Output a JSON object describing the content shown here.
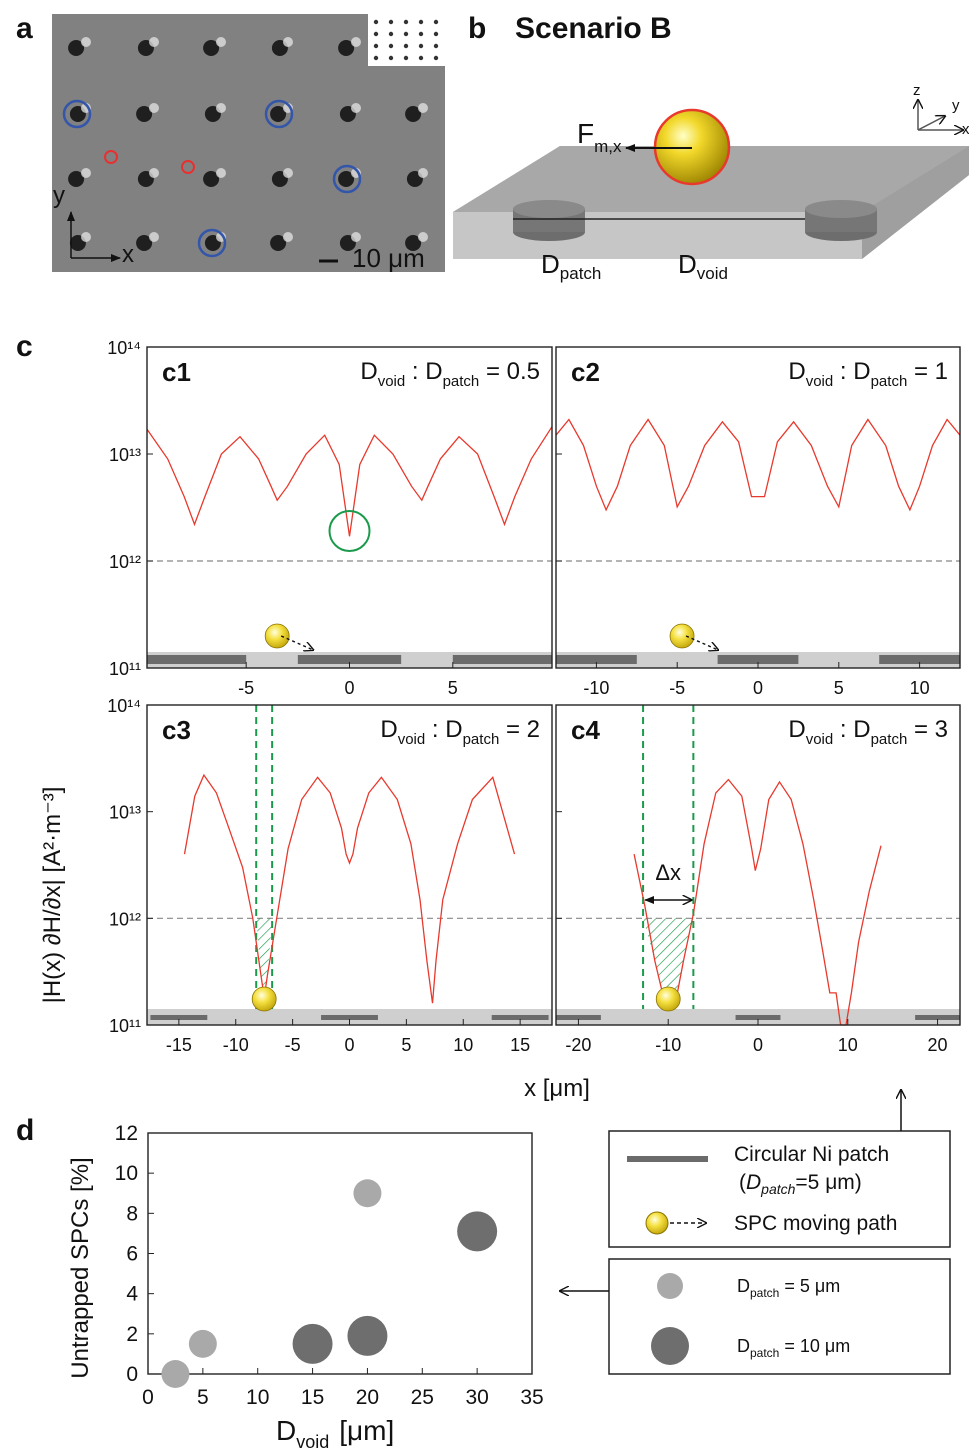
{
  "panel_labels": {
    "a": "a",
    "b": "b",
    "c": "c",
    "d": "d"
  },
  "panel_a": {
    "scale_bar": "10 μm",
    "axis_x": "x",
    "axis_y": "y"
  },
  "panel_b": {
    "title": "Scenario B",
    "force_main": "F",
    "force_sub": "m,x",
    "patch_main": "D",
    "patch_sub": "patch",
    "void_main": "D",
    "void_sub": "void",
    "coord_z": "z",
    "coord_y": "y",
    "coord_x": "x"
  },
  "panel_c": {
    "ylabel": "|H(x) ∂H/∂x| [A²·m⁻³]",
    "xlabel": "x [μm]",
    "y_ticks": [
      "10¹⁴",
      "10¹³",
      "10¹²",
      "10¹¹"
    ],
    "delta_x": "Δx",
    "ratio_main_void": "D",
    "ratio_sub_void": "void",
    "ratio_colon": ":",
    "ratio_main_patch": "D",
    "ratio_sub_patch": "patch"
  },
  "chart_data": [
    {
      "type": "line",
      "panel": "c1",
      "ratio_value": "= 0.5",
      "ylog": true,
      "ylim": [
        100000000000.0,
        100000000000000.0
      ],
      "xlim": [
        -9.8,
        9.8
      ],
      "xticks": [
        -5,
        0,
        5
      ],
      "threshold": 1000000000000.0,
      "series": [
        {
          "x": [
            -9.8,
            -8.8,
            -8.0,
            -7.5,
            -7.0,
            -6.2,
            -5.3,
            -4.4,
            -3.8,
            -3.5,
            -3.0,
            -2.1,
            -1.2,
            -0.5,
            0,
            0.5,
            1.2,
            2.1,
            3.0,
            3.5,
            3.8,
            4.4,
            5.3,
            6.2,
            7.0,
            7.5,
            8.0,
            8.8,
            9.8
          ],
          "y": [
            17000000000000.0,
            9000000000000.0,
            4000000000000.0,
            2200000000000.0,
            4000000000000.0,
            10000000000000.0,
            14500000000000.0,
            9000000000000.0,
            5000000000000.0,
            3700000000000.0,
            5000000000000.0,
            10000000000000.0,
            15000000000000.0,
            8000000000000.0,
            1700000000000.0,
            8000000000000.0,
            15000000000000.0,
            10000000000000.0,
            5000000000000.0,
            3700000000000.0,
            5000000000000.0,
            9000000000000.0,
            14500000000000.0,
            10000000000000.0,
            4000000000000.0,
            2200000000000.0,
            4000000000000.0,
            9000000000000.0,
            18000000000000.0
          ]
        }
      ]
    },
    {
      "type": "line",
      "panel": "c2",
      "ratio_value": "= 1",
      "ylog": true,
      "ylim": [
        100000000000.0,
        100000000000000.0
      ],
      "xlim": [
        -12.5,
        12.5
      ],
      "xticks": [
        -10,
        -5,
        0,
        5,
        10
      ],
      "threshold": 1000000000000.0,
      "series": [
        {
          "x": [
            -12.5,
            -11.7,
            -10.8,
            -10.0,
            -9.4,
            -8.7,
            -7.9,
            -6.8,
            -5.8,
            -5.0,
            -4.3,
            -3.3,
            -2.2,
            -1.2,
            -0.4,
            0.4,
            1.2,
            2.2,
            3.3,
            4.3,
            5.0,
            5.8,
            6.8,
            7.9,
            8.7,
            9.4,
            10.0,
            10.8,
            11.7,
            12.5
          ],
          "y": [
            15000000000000.0,
            21000000000000.0,
            12000000000000.0,
            5000000000000.0,
            3000000000000.0,
            5000000000000.0,
            12000000000000.0,
            21000000000000.0,
            12000000000000.0,
            3200000000000.0,
            5000000000000.0,
            12000000000000.0,
            20000000000000.0,
            13000000000000.0,
            4000000000000.0,
            4000000000000.0,
            13000000000000.0,
            20000000000000.0,
            12000000000000.0,
            5000000000000.0,
            3200000000000.0,
            12000000000000.0,
            21000000000000.0,
            12000000000000.0,
            5000000000000.0,
            3000000000000.0,
            5000000000000.0,
            12000000000000.0,
            21000000000000.0,
            15000000000000.0
          ]
        }
      ]
    },
    {
      "type": "line",
      "panel": "c3",
      "ratio_value": "= 2",
      "ylog": true,
      "ylim": [
        100000000000.0,
        100000000000000.0
      ],
      "xlim": [
        -17.8,
        17.8
      ],
      "xticks": [
        -15,
        -10,
        -5,
        0,
        5,
        10,
        15
      ],
      "threshold": 1000000000000.0,
      "series": [
        {
          "x": [
            -14.5,
            -13.6,
            -12.8,
            -11.7,
            -10.6,
            -9.4,
            -8.5,
            -7.8,
            -7.5,
            -7.2,
            -6.4,
            -5.4,
            -4.2,
            -2.8,
            -1.7,
            -0.7,
            -0.3,
            0,
            0.3,
            0.7,
            1.7,
            2.8,
            4.2,
            5.4,
            6.2,
            6.8,
            7.3,
            7.6,
            8.2,
            9.5,
            10.8,
            12.6,
            14.5
          ],
          "y": [
            4000000000000.0,
            14000000000000.0,
            22000000000000.0,
            15000000000000.0,
            7000000000000.0,
            3000000000000.0,
            1000000000000.0,
            300000000000.0,
            180000000000.0,
            300000000000.0,
            1000000000000.0,
            4500000000000.0,
            13000000000000.0,
            21000000000000.0,
            15000000000000.0,
            7000000000000.0,
            4000000000000.0,
            3300000000000.0,
            4000000000000.0,
            7000000000000.0,
            15000000000000.0,
            21000000000000.0,
            13000000000000.0,
            5000000000000.0,
            1500000000000.0,
            400000000000.0,
            160000000000.0,
            400000000000.0,
            1500000000000.0,
            5000000000000.0,
            13000000000000.0,
            21000000000000.0,
            4000000000000.0
          ]
        }
      ]
    },
    {
      "type": "line",
      "panel": "c4",
      "ratio_value": "= 3",
      "ylog": true,
      "ylim": [
        100000000000.0,
        100000000000000.0
      ],
      "xlim": [
        -22.5,
        22.5
      ],
      "xticks": [
        -20,
        -10,
        0,
        10,
        20
      ],
      "threshold": 1000000000000.0,
      "delta_x_range": [
        -12.8,
        -7.2
      ],
      "series": [
        {
          "x": [
            -13.8,
            -12.6,
            -11.5,
            -10.2,
            -9.2,
            -8.3,
            -7.2,
            -6.0,
            -4.7,
            -3.3,
            -1.8,
            -0.7,
            -0.3,
            0.3,
            1.2,
            2.4,
            3.7,
            5.0,
            6.2,
            7.2,
            8.0,
            8.7,
            9.2,
            9.8,
            10.4,
            11.2,
            12.4,
            13.7
          ],
          "y": [
            4000000000000.0,
            1300000000000.0,
            400000000000.0,
            140000000000.0,
            160000000000.0,
            400000000000.0,
            1100000000000.0,
            5000000000000.0,
            15000000000000.0,
            20000000000000.0,
            14000000000000.0,
            4500000000000.0,
            2800000000000.0,
            4500000000000.0,
            13000000000000.0,
            19000000000000.0,
            13000000000000.0,
            5000000000000.0,
            1500000000000.0,
            500000000000.0,
            200000000000.0,
            200000000000.0,
            100000000000.0,
            100000000000.0,
            200000000000.0,
            600000000000.0,
            1800000000000.0,
            4800000000000.0
          ]
        }
      ]
    },
    {
      "type": "scatter",
      "panel": "d",
      "ylabel": "Untrapped SPCs [%]",
      "xlabel_main": "D",
      "xlabel_sub": "void",
      "xlabel_unit": "[μm]",
      "xlim": [
        0,
        35
      ],
      "ylim": [
        0,
        12
      ],
      "xticks": [
        0,
        5,
        10,
        15,
        20,
        25,
        30,
        35
      ],
      "yticks": [
        0,
        2,
        4,
        6,
        8,
        10,
        12
      ],
      "series": [
        {
          "name": "Dpatch = 5 μm",
          "color": "#a9a9a9",
          "x": [
            2.5,
            5,
            20
          ],
          "y": [
            0,
            1.5,
            9
          ]
        },
        {
          "name": "Dpatch = 10 μm",
          "color": "#6e6e6e",
          "x": [
            15,
            20,
            30
          ],
          "y": [
            1.5,
            1.9,
            7.1
          ]
        }
      ]
    }
  ],
  "legend_top": {
    "patch_label_1": "Circular Ni patch",
    "patch_label_2_open": "(",
    "patch_label_2_main": "D",
    "patch_label_2_sub": "patch",
    "patch_label_2_rest": "=5 μm)",
    "spc_label": "SPC moving path"
  },
  "legend_bottom": {
    "item1_main": "D",
    "item1_sub": "patch",
    "item1_rest": " = 5 μm",
    "item2_main": "D",
    "item2_sub": "patch",
    "item2_rest": " = 10 μm"
  },
  "colors": {
    "curve": "#e8392d",
    "threshold": "#888888",
    "green": "#1a9a4a",
    "patch": "#6b6b6b",
    "substrate": "#cfcfcf",
    "sphere": "#e6c200",
    "circle_blue": "#3355aa",
    "circle_red": "#e83030"
  }
}
